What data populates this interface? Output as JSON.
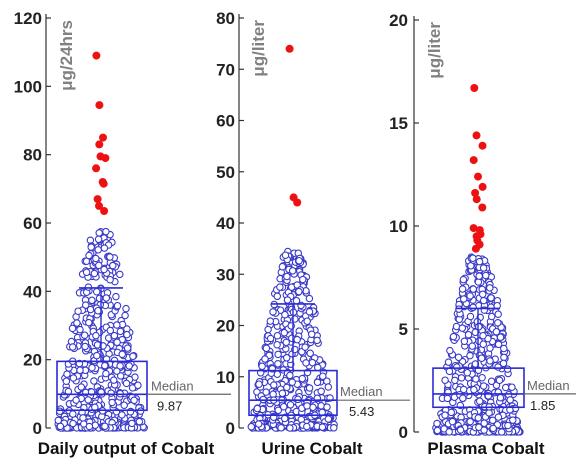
{
  "colors": {
    "box": "#2b2bd6",
    "point": "#3a3ac8",
    "outlier": "#ee1111",
    "axis": "#333333",
    "median_line": "#666666",
    "unit_label": "#808080"
  },
  "chart_data": [
    {
      "type": "box-scatter",
      "xlabel": "Daily output of Cobalt",
      "unit": "μg/24hrs",
      "ylim": [
        0,
        120
      ],
      "yticks": [
        0,
        20,
        40,
        60,
        80,
        100,
        120
      ],
      "box": {
        "q1": 5.2,
        "median": 9.87,
        "q3": 19.5,
        "upper_whisker": 41
      },
      "median_label": "Median",
      "median_value": "9.87",
      "outliers": [
        109,
        94.5,
        85,
        83,
        79.5,
        79,
        76,
        72,
        71.5,
        67,
        65,
        63.5
      ],
      "points": {
        "max": 58
      }
    },
    {
      "type": "box-scatter",
      "xlabel": "Urine Cobalt",
      "unit": "μg/liter",
      "ylim": [
        0,
        80
      ],
      "yticks": [
        0,
        10,
        20,
        30,
        40,
        50,
        60,
        70,
        80
      ],
      "box": {
        "q1": 2.5,
        "median": 5.43,
        "q3": 11.2,
        "upper_whisker": 24.2
      },
      "median_label": "Median",
      "median_value": "5.43",
      "outliers": [
        74,
        45,
        44
      ],
      "points": {
        "max": 34.5
      }
    },
    {
      "type": "box-scatter",
      "xlabel": "Plasma Cobalt",
      "unit": "μg/liter",
      "ylim": [
        0,
        20
      ],
      "yticks": [
        0,
        5,
        10,
        15,
        20
      ],
      "box": {
        "q1": 1.2,
        "median": 1.85,
        "q3": 3.1,
        "upper_whisker": 6
      },
      "median_label": "Median",
      "median_value": "1.85",
      "outliers": [
        16.7,
        14.4,
        13.9,
        13.2,
        12.4,
        11.9,
        11.6,
        11.3,
        10.9,
        9.9,
        9.8,
        9.6,
        9.5,
        9.3,
        9.1,
        8.9
      ],
      "points": {
        "max": 8.5
      }
    }
  ]
}
